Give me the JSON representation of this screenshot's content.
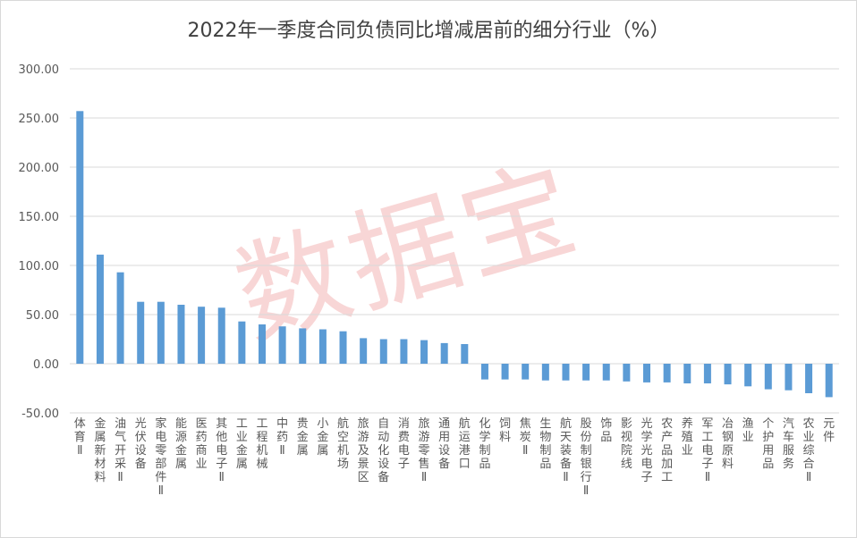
{
  "chart_data": {
    "type": "bar",
    "title": "2022年一季度合同负债同比增减居前的细分行业（%）",
    "xlabel": "",
    "ylabel": "",
    "ylim": [
      -50,
      300
    ],
    "yticks": [
      "300.00",
      "250.00",
      "200.00",
      "150.00",
      "100.00",
      "50.00",
      "0.00",
      "-50.00"
    ],
    "ytick_values": [
      300,
      250,
      200,
      150,
      100,
      50,
      0,
      -50
    ],
    "grid": true,
    "bar_color": "#5b9bd5",
    "categories": [
      "体育Ⅱ",
      "金属新材料",
      "油气开采Ⅱ",
      "光伏设备",
      "家电零部件Ⅱ",
      "能源金属",
      "医药商业",
      "其他电子Ⅱ",
      "工业金属",
      "工程机械",
      "中药Ⅱ",
      "贵金属",
      "小金属",
      "航空机场",
      "旅游及景区",
      "自动化设备",
      "消费电子",
      "旅游零售Ⅱ",
      "通用设备",
      "航运港口",
      "化学制品",
      "饲料",
      "焦炭Ⅱ",
      "生物制品",
      "航天装备Ⅱ",
      "股份制银行Ⅱ",
      "饰品",
      "影视院线",
      "光学光电子",
      "农产品加工",
      "养殖业",
      "军工电子Ⅱ",
      "冶钢原料",
      "渔业",
      "个护用品",
      "汽车服务",
      "农业综合Ⅱ",
      "元件"
    ],
    "values": [
      257,
      111,
      93,
      63,
      63,
      60,
      58,
      57,
      43,
      40,
      38,
      36,
      35,
      33,
      26,
      25,
      25,
      24,
      21,
      20,
      -16,
      -16,
      -16,
      -17,
      -17,
      -17,
      -17,
      -18,
      -19,
      -19,
      -20,
      -20,
      -21,
      -23,
      -26,
      -27,
      -30,
      -34
    ]
  },
  "watermark": "数据宝"
}
